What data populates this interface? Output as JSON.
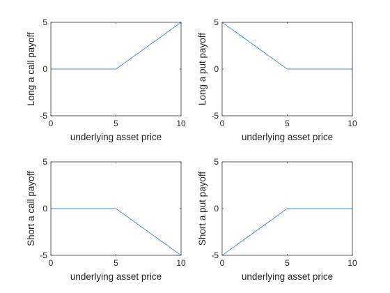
{
  "chart_data": [
    {
      "type": "line",
      "xlabel": "underlying asset price",
      "ylabel": "Long a call payoff",
      "xlim": [
        0,
        10
      ],
      "ylim": [
        -5,
        5
      ],
      "xticks": [
        "0",
        "5",
        "10"
      ],
      "yticks": [
        "-5",
        "0",
        "5"
      ],
      "grid": false,
      "color": "#0072bd",
      "series": [
        {
          "x": [
            0,
            5,
            10
          ],
          "y": [
            0,
            0,
            5
          ]
        }
      ]
    },
    {
      "type": "line",
      "xlabel": "underlying asset price",
      "ylabel": "Long a put payoff",
      "xlim": [
        0,
        10
      ],
      "ylim": [
        -5,
        5
      ],
      "xticks": [
        "0",
        "5",
        "10"
      ],
      "yticks": [
        "-5",
        "0",
        "5"
      ],
      "grid": false,
      "color": "#0072bd",
      "series": [
        {
          "x": [
            0,
            5,
            10
          ],
          "y": [
            5,
            0,
            0
          ]
        }
      ]
    },
    {
      "type": "line",
      "xlabel": "underlying asset price",
      "ylabel": "Short a call payoff",
      "xlim": [
        0,
        10
      ],
      "ylim": [
        -5,
        5
      ],
      "xticks": [
        "0",
        "5",
        "10"
      ],
      "yticks": [
        "-5",
        "0",
        "5"
      ],
      "grid": false,
      "color": "#0072bd",
      "series": [
        {
          "x": [
            0,
            5,
            10
          ],
          "y": [
            0,
            0,
            -5
          ]
        }
      ]
    },
    {
      "type": "line",
      "xlabel": "underlying asset price",
      "ylabel": "Short a put payoff",
      "xlim": [
        0,
        10
      ],
      "ylim": [
        -5,
        5
      ],
      "xticks": [
        "0",
        "5",
        "10"
      ],
      "yticks": [
        "-5",
        "0",
        "5"
      ],
      "grid": false,
      "color": "#0072bd",
      "series": [
        {
          "x": [
            0,
            5,
            10
          ],
          "y": [
            -5,
            0,
            0
          ]
        }
      ]
    }
  ]
}
